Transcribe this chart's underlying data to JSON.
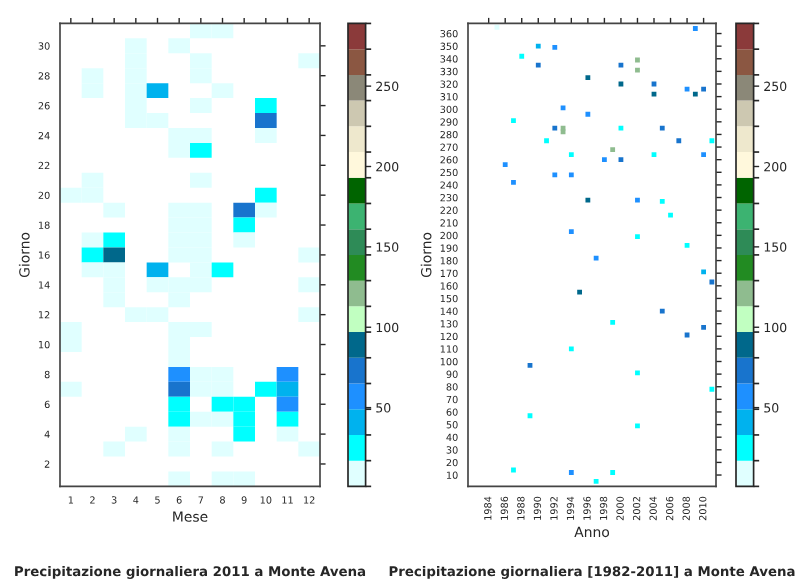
{
  "chart_data": [
    {
      "type": "heatmap",
      "title": "Precipitazione giornaliera 2011 a Monte Avena",
      "xlabel": "Mese",
      "ylabel": "Giorno",
      "categories": [
        "1",
        "2",
        "3",
        "4",
        "5",
        "6",
        "7",
        "8",
        "9",
        "10",
        "11",
        "12"
      ],
      "y_categories": [
        null,
        "30",
        null,
        "28",
        null,
        "26",
        null,
        "24",
        null,
        "22",
        null,
        "20",
        null,
        "18",
        null,
        "16",
        null,
        "14",
        null,
        "12",
        null,
        "10",
        null,
        "8",
        null,
        "6",
        null,
        "4",
        null,
        "2",
        null
      ],
      "clim": [
        1,
        289
      ],
      "cticks": [
        50,
        100,
        150,
        200,
        250
      ],
      "colors": [
        "#e0ffff",
        "#00ffff",
        "#00b2ee",
        "#1e90ff",
        "#1874cd",
        "#00688b",
        "#c1ffc1",
        "#8fbc8f",
        "#228b22",
        "#2e8b57",
        "#3cb371",
        "#006400",
        "#fff8dc",
        "#eee8cd",
        "#cdc8b1",
        "#8b8878",
        "#8b5742",
        "#8b3a3a"
      ],
      "cells": [
        [
          null,
          null,
          null,
          null,
          null,
          null,
          9,
          9,
          null,
          null,
          null,
          null
        ],
        [
          null,
          null,
          null,
          9,
          null,
          9,
          null,
          null,
          null,
          null,
          null,
          null
        ],
        [
          null,
          null,
          null,
          9,
          null,
          null,
          9,
          null,
          null,
          null,
          null,
          9
        ],
        [
          null,
          9,
          null,
          9,
          null,
          null,
          9,
          null,
          null,
          null,
          null,
          null
        ],
        [
          null,
          9,
          null,
          9,
          41,
          null,
          null,
          9,
          null,
          null,
          null,
          null
        ],
        [
          null,
          null,
          null,
          9,
          null,
          null,
          9,
          null,
          null,
          25,
          null,
          null
        ],
        [
          null,
          null,
          null,
          9,
          9,
          null,
          null,
          null,
          null,
          73,
          null,
          null
        ],
        [
          null,
          null,
          null,
          null,
          null,
          9,
          9,
          null,
          null,
          9,
          null,
          null
        ],
        [
          null,
          null,
          null,
          null,
          null,
          9,
          25,
          null,
          null,
          null,
          null,
          null
        ],
        [
          null,
          null,
          null,
          null,
          null,
          null,
          null,
          null,
          null,
          null,
          null,
          null
        ],
        [
          null,
          9,
          null,
          null,
          null,
          null,
          9,
          null,
          null,
          null,
          null,
          null
        ],
        [
          9,
          9,
          null,
          null,
          null,
          null,
          null,
          null,
          null,
          25,
          null,
          null
        ],
        [
          null,
          null,
          9,
          null,
          null,
          9,
          9,
          null,
          73,
          9,
          null,
          null
        ],
        [
          null,
          null,
          null,
          null,
          null,
          9,
          9,
          null,
          25,
          null,
          null,
          null
        ],
        [
          null,
          9,
          25,
          null,
          null,
          9,
          9,
          null,
          9,
          null,
          null,
          null
        ],
        [
          null,
          25,
          89,
          null,
          null,
          9,
          9,
          null,
          null,
          null,
          null,
          9
        ],
        [
          null,
          9,
          9,
          null,
          41,
          null,
          9,
          25,
          null,
          null,
          null,
          null
        ],
        [
          null,
          null,
          9,
          null,
          9,
          9,
          9,
          null,
          null,
          null,
          null,
          9
        ],
        [
          null,
          null,
          9,
          null,
          null,
          9,
          null,
          null,
          null,
          null,
          null,
          null
        ],
        [
          null,
          null,
          null,
          9,
          9,
          null,
          null,
          null,
          null,
          null,
          null,
          9
        ],
        [
          9,
          null,
          null,
          null,
          null,
          9,
          9,
          null,
          null,
          null,
          null,
          null
        ],
        [
          9,
          null,
          null,
          null,
          null,
          9,
          null,
          null,
          null,
          null,
          null,
          null
        ],
        [
          null,
          null,
          null,
          null,
          null,
          9,
          null,
          null,
          null,
          null,
          null,
          null
        ],
        [
          null,
          null,
          null,
          null,
          null,
          57,
          9,
          9,
          null,
          null,
          57,
          null
        ],
        [
          9,
          null,
          null,
          null,
          null,
          73,
          9,
          9,
          null,
          25,
          41,
          null
        ],
        [
          null,
          null,
          null,
          null,
          null,
          25,
          null,
          25,
          25,
          null,
          57,
          null
        ],
        [
          null,
          null,
          null,
          null,
          null,
          25,
          9,
          9,
          25,
          null,
          25,
          null
        ],
        [
          null,
          null,
          null,
          9,
          null,
          9,
          null,
          null,
          25,
          null,
          9,
          null
        ],
        [
          null,
          null,
          9,
          null,
          null,
          9,
          null,
          9,
          null,
          null,
          null,
          9
        ],
        [
          null,
          null,
          null,
          null,
          null,
          null,
          null,
          null,
          null,
          null,
          null,
          null
        ],
        [
          null,
          null,
          null,
          null,
          null,
          9,
          null,
          9,
          9,
          null,
          null,
          null
        ]
      ]
    },
    {
      "type": "scatter",
      "title": "Precipitazione giornaliera [1982-2011] a Monte Avena",
      "xlabel": "Anno",
      "ylabel": "Giorno",
      "marker": "square",
      "xlim": [
        1981.5,
        2011.5
      ],
      "xticks": [
        1984,
        1986,
        1988,
        1990,
        1992,
        1994,
        1996,
        1998,
        2000,
        2002,
        2004,
        2006,
        2008,
        2010
      ],
      "ylim": [
        1,
        368
      ],
      "yticks": [
        10,
        20,
        30,
        40,
        50,
        60,
        70,
        80,
        90,
        100,
        110,
        120,
        130,
        140,
        150,
        160,
        170,
        180,
        190,
        200,
        210,
        220,
        230,
        240,
        250,
        260,
        270,
        280,
        290,
        300,
        310,
        320,
        330,
        340,
        350,
        360
      ],
      "clim": [
        1,
        289
      ],
      "cticks": [
        50,
        100,
        150,
        200,
        250
      ],
      "x": [
        1985,
        2009,
        1990,
        1992,
        1988,
        2002,
        1990,
        2000,
        2002,
        1996,
        2000,
        2004,
        2008,
        2010,
        2004,
        2009,
        1993,
        1996,
        1987,
        1992,
        1993,
        2000,
        2005,
        1993,
        1991,
        2007,
        2011,
        1999,
        1994,
        2004,
        2010,
        1998,
        2000,
        1986,
        1992,
        1994,
        1987,
        1996,
        2002,
        2005,
        2006,
        1994,
        2002,
        2008,
        1997,
        2010,
        2011,
        1995,
        2005,
        1999,
        2010,
        2008,
        1994,
        1989,
        2002,
        2011,
        1989,
        2002,
        1987,
        1994,
        1999,
        1997
      ],
      "values": [
        365,
        364,
        350,
        349,
        342,
        339,
        335,
        335,
        331,
        325,
        320,
        320,
        316,
        316,
        312,
        312,
        301,
        296,
        291,
        285,
        285,
        285,
        285,
        282,
        275,
        275,
        275,
        268,
        264,
        264,
        264,
        260,
        260,
        256,
        248,
        248,
        242,
        228,
        228,
        227,
        216,
        203,
        199,
        192,
        182,
        171,
        163,
        155,
        140,
        131,
        127,
        121,
        110,
        97,
        91,
        78,
        57,
        49,
        14,
        12,
        12,
        5
      ],
      "cvalues": [
        9,
        57,
        41,
        57,
        25,
        121,
        73,
        73,
        121,
        89,
        89,
        73,
        57,
        73,
        89,
        89,
        57,
        57,
        25,
        73,
        121,
        25,
        73,
        121,
        25,
        73,
        25,
        121,
        25,
        25,
        57,
        57,
        73,
        57,
        57,
        57,
        57,
        89,
        57,
        25,
        25,
        57,
        25,
        25,
        57,
        41,
        73,
        89,
        73,
        25,
        73,
        73,
        25,
        73,
        25,
        25,
        25,
        25,
        25,
        57,
        25,
        25
      ]
    }
  ]
}
